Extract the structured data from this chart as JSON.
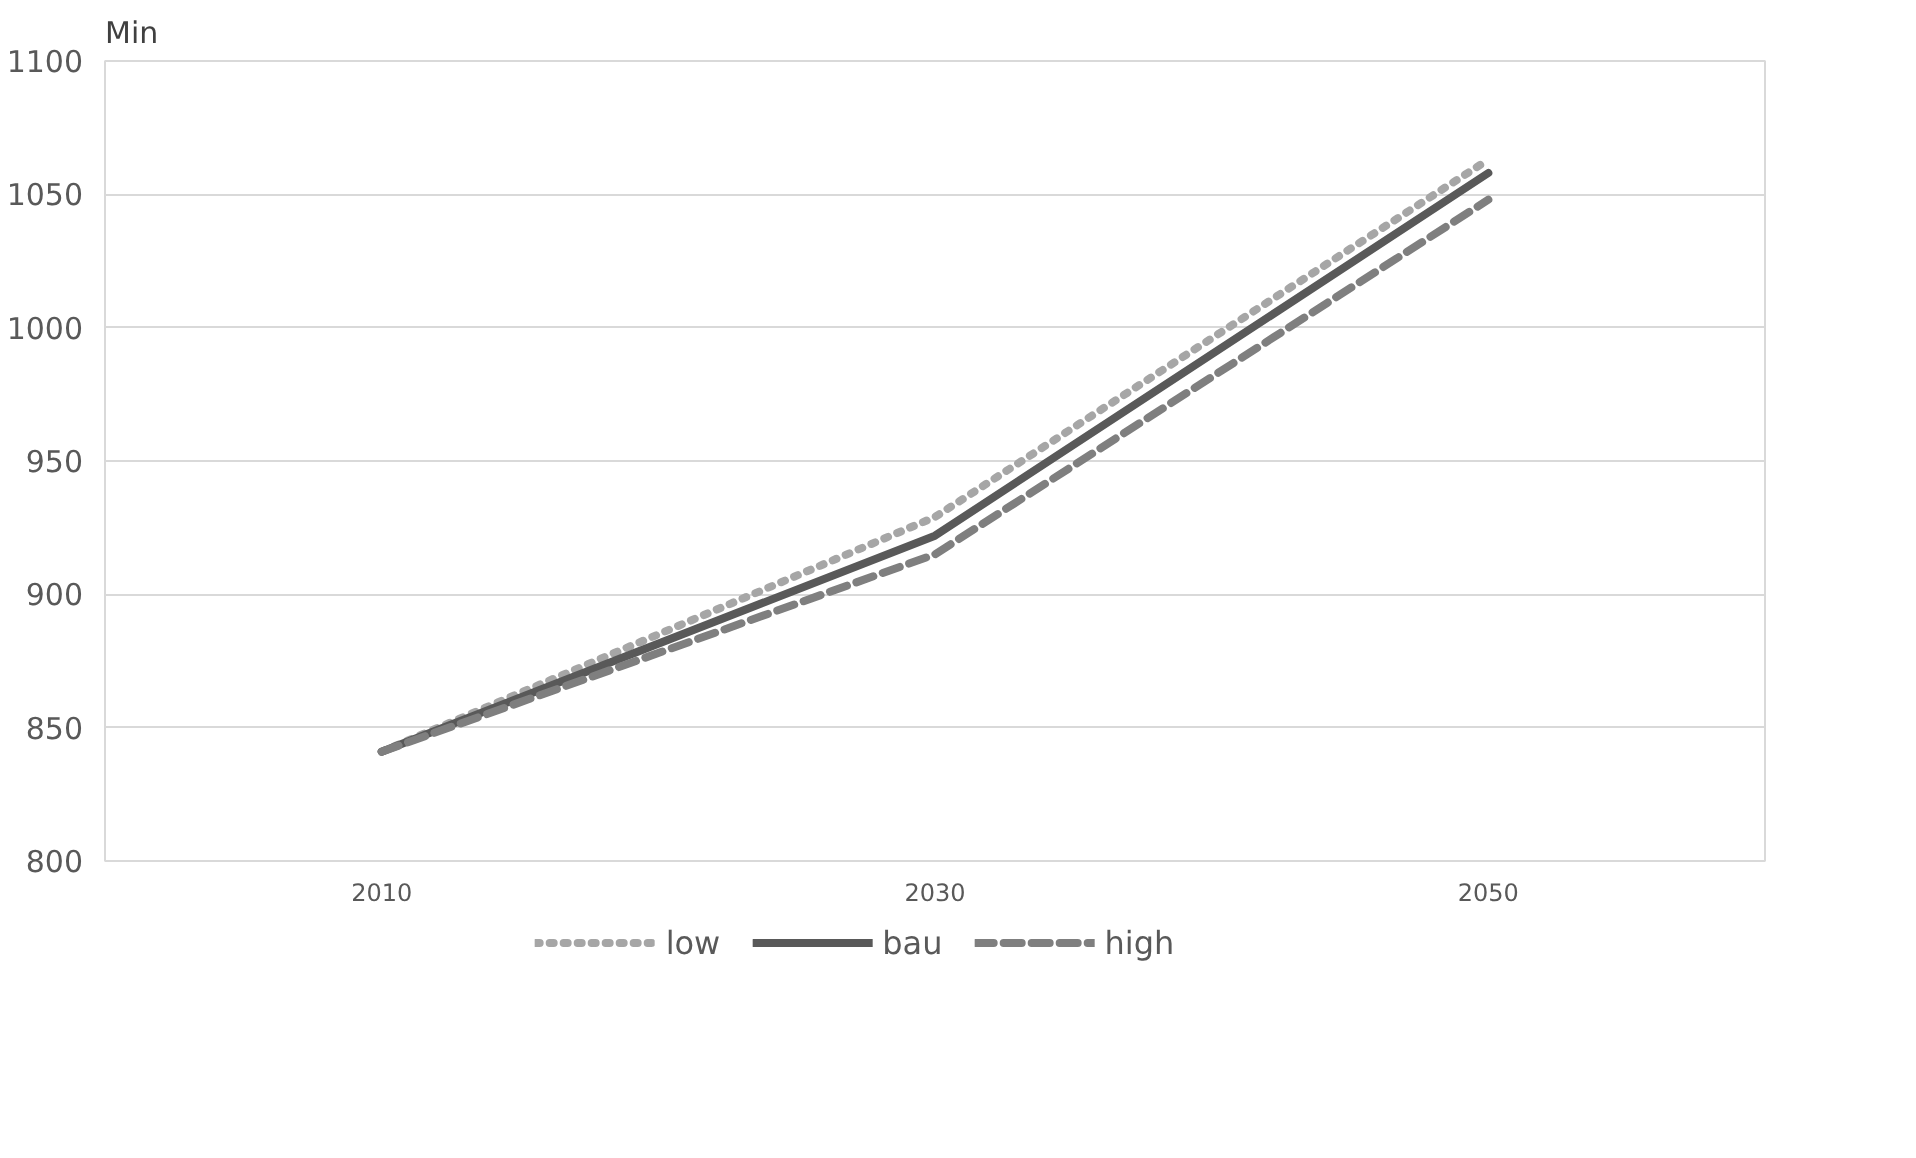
{
  "chart_data": {
    "type": "line",
    "ylabel": "Min",
    "categories": [
      "2010",
      "2030",
      "2050"
    ],
    "series": [
      {
        "name": "low",
        "color": "#a6a6a6",
        "line_style": "dotted",
        "values": [
          841,
          929,
          1063
        ]
      },
      {
        "name": "bau",
        "color": "#595959",
        "line_style": "solid",
        "values": [
          841,
          922,
          1058
        ]
      },
      {
        "name": "high",
        "color": "#7f7f7f",
        "line_style": "dashed",
        "values": [
          841,
          915,
          1048
        ]
      }
    ],
    "ylim": [
      800,
      1100
    ],
    "yticks": [
      800,
      850,
      900,
      950,
      1000,
      1050,
      1100
    ],
    "grid": "y",
    "legend": "bottom"
  }
}
